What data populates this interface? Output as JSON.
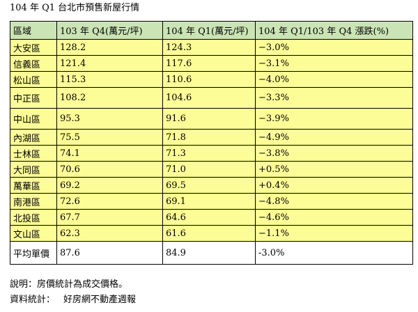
{
  "title": "104 年 Q1 台北市預售新屋行情",
  "table": {
    "headers": [
      "區域",
      "103 年 Q4(萬元/坪)",
      "104 年 Q1(萬元/坪)",
      "104 年 Q1/103 年 Q4 漲跌(%)"
    ],
    "rows": [
      {
        "district": "大安區",
        "q4_103": "128.2",
        "q1_104": "124.3",
        "change": "−3.0%"
      },
      {
        "district": "信義區",
        "q4_103": "121.4",
        "q1_104": "117.6",
        "change": "−3.1%"
      },
      {
        "district": "松山區",
        "q4_103": "115.3",
        "q1_104": "110.6",
        "change": "−4.0%"
      },
      {
        "district": "中正區",
        "q4_103": "108.2",
        "q1_104": "104.6",
        "change": "−3.3%"
      },
      {
        "district": "中山區",
        "q4_103": "95.3",
        "q1_104": "91.6",
        "change": "−3.9%"
      },
      {
        "district": "內湖區",
        "q4_103": "75.5",
        "q1_104": "71.8",
        "change": "−4.9%"
      },
      {
        "district": "士林區",
        "q4_103": "74.1",
        "q1_104": "71.3",
        "change": "−3.8%"
      },
      {
        "district": "大同區",
        "q4_103": "70.6",
        "q1_104": "71.0",
        "change": "+0.5%"
      },
      {
        "district": "萬華區",
        "q4_103": "69.2",
        "q1_104": "69.5",
        "change": "+0.4%"
      },
      {
        "district": "南港區",
        "q4_103": "72.6",
        "q1_104": "69.1",
        "change": "−4.8%"
      },
      {
        "district": "北投區",
        "q4_103": "67.7",
        "q1_104": "64.6",
        "change": "−4.6%"
      },
      {
        "district": "文山區",
        "q4_103": "62.3",
        "q1_104": "61.6",
        "change": "−1.1%"
      }
    ],
    "average": {
      "district": "平均單價",
      "q4_103": "87.6",
      "q1_104": "84.9",
      "change": "-3.0%"
    }
  },
  "notes": {
    "note_label": "說明：",
    "note_text": "房價統計為成交價格。",
    "source_label": "資料統計：",
    "source_text": "好房網不動產週報"
  },
  "colors": {
    "header_bg": "#cbe4b5",
    "data_bg": "#fdfd97"
  }
}
